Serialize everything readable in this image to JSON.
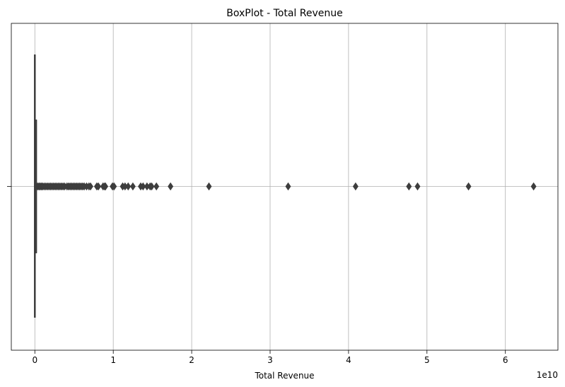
{
  "chart_data": {
    "type": "box",
    "title": "BoxPlot - Total Revenue",
    "xlabel": "Total Revenue",
    "ylabel": "",
    "offset_label": "1e10",
    "scale": 10000000000,
    "xlim": [
      -3000000000,
      66700000000
    ],
    "xticks": [
      0,
      10000000000,
      20000000000,
      30000000000,
      40000000000,
      50000000000,
      60000000000
    ],
    "xtick_labels": [
      "0",
      "1",
      "2",
      "3",
      "4",
      "5",
      "6"
    ],
    "grid": true,
    "box": {
      "min": 0,
      "q1": 0,
      "median": 0,
      "q3": 60000000,
      "max": 150000000
    },
    "outliers": [
      250000000,
      400000000,
      550000000,
      700000000,
      850000000,
      1000000000,
      1200000000,
      1400000000,
      1600000000,
      1800000000,
      2000000000,
      2200000000,
      2400000000,
      2600000000,
      2800000000,
      3000000000,
      3200000000,
      3400000000,
      3600000000,
      3800000000,
      4100000000,
      4300000000,
      4500000000,
      4700000000,
      4900000000,
      5100000000,
      5300000000,
      5500000000,
      5700000000,
      5900000000,
      6100000000,
      6300000000,
      6600000000,
      6900000000,
      7100000000,
      7900000000,
      8100000000,
      8700000000,
      8900000000,
      9000000000,
      9900000000,
      10100000000,
      11200000000,
      11500000000,
      11900000000,
      12500000000,
      13500000000,
      13800000000,
      14300000000,
      14700000000,
      14900000000,
      15500000000,
      17300000000,
      22200000000,
      32300000000,
      40900000000,
      47700000000,
      48800000000,
      55300000000,
      63600000000
    ],
    "colors": {
      "box_edge": "#3d3d3d",
      "grid": "#b0b0b0",
      "axis": "#000000"
    }
  }
}
